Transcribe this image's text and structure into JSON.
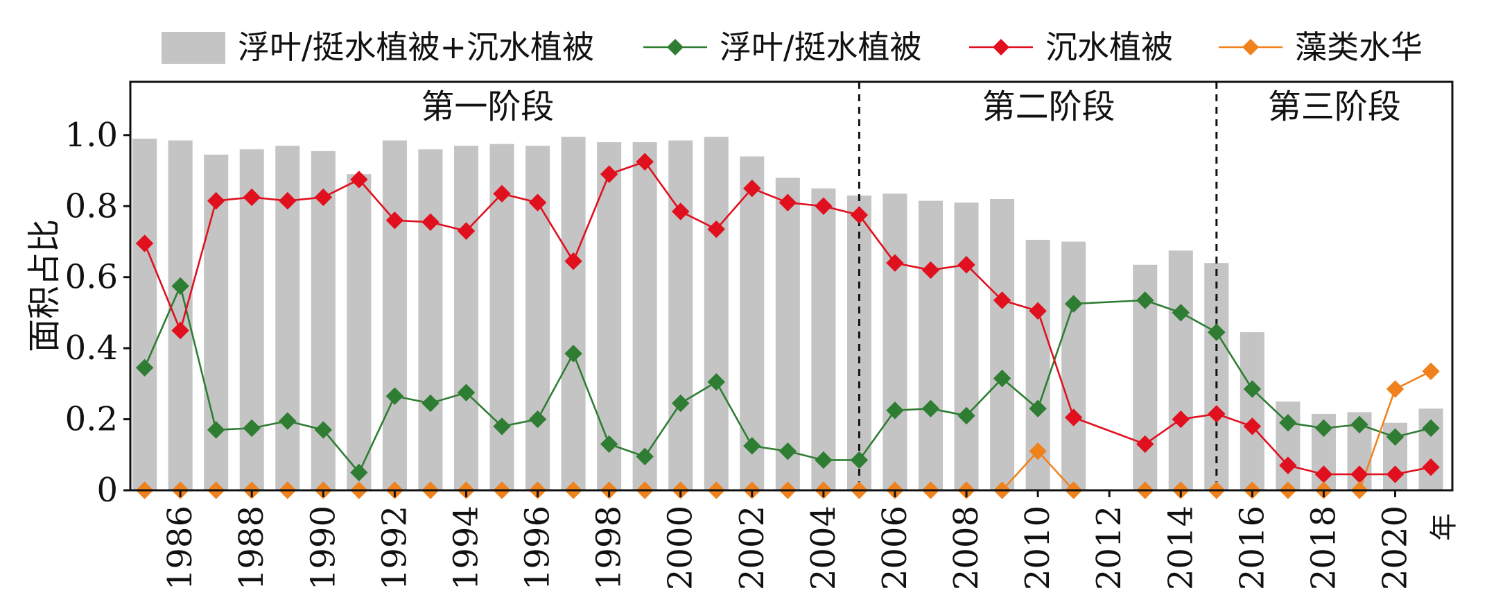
{
  "chart_data": {
    "type": "bar",
    "title": "",
    "xlabel": "",
    "ylabel": "面积占比",
    "x_unit": "年",
    "ylim": [
      0,
      1.15
    ],
    "xlim": [
      1984.6,
      2021.6
    ],
    "yticks": [
      {
        "value": 0,
        "label": "0"
      },
      {
        "value": 0.2,
        "label": "0.2"
      },
      {
        "value": 0.4,
        "label": "0.4"
      },
      {
        "value": 0.6,
        "label": "0.6"
      },
      {
        "value": 0.8,
        "label": "0.8"
      },
      {
        "value": 1.0,
        "label": "1.0"
      }
    ],
    "xticks": [
      {
        "value": 1986,
        "label": "1986"
      },
      {
        "value": 1988,
        "label": "1988"
      },
      {
        "value": 1990,
        "label": "1990"
      },
      {
        "value": 1992,
        "label": "1992"
      },
      {
        "value": 1994,
        "label": "1994"
      },
      {
        "value": 1996,
        "label": "1996"
      },
      {
        "value": 1998,
        "label": "1998"
      },
      {
        "value": 2000,
        "label": "2000"
      },
      {
        "value": 2002,
        "label": "2002"
      },
      {
        "value": 2004,
        "label": "2004"
      },
      {
        "value": 2006,
        "label": "2006"
      },
      {
        "value": 2008,
        "label": "2008"
      },
      {
        "value": 2010,
        "label": "2010"
      },
      {
        "value": 2012,
        "label": "2012"
      },
      {
        "value": 2014,
        "label": "2014"
      },
      {
        "value": 2016,
        "label": "2016"
      },
      {
        "value": 2018,
        "label": "2018"
      },
      {
        "value": 2020,
        "label": "2020"
      }
    ],
    "bar_series": {
      "name": "浮叶/挺水植被+沉水植被",
      "color": "#c4c4c4",
      "points": [
        {
          "x": 1985,
          "y": 0.99
        },
        {
          "x": 1986,
          "y": 0.985
        },
        {
          "x": 1987,
          "y": 0.945
        },
        {
          "x": 1988,
          "y": 0.96
        },
        {
          "x": 1989,
          "y": 0.97
        },
        {
          "x": 1990,
          "y": 0.955
        },
        {
          "x": 1991,
          "y": 0.89
        },
        {
          "x": 1992,
          "y": 0.985
        },
        {
          "x": 1993,
          "y": 0.96
        },
        {
          "x": 1994,
          "y": 0.97
        },
        {
          "x": 1995,
          "y": 0.975
        },
        {
          "x": 1996,
          "y": 0.97
        },
        {
          "x": 1997,
          "y": 0.995
        },
        {
          "x": 1998,
          "y": 0.98
        },
        {
          "x": 1999,
          "y": 0.98
        },
        {
          "x": 2000,
          "y": 0.985
        },
        {
          "x": 2001,
          "y": 0.995
        },
        {
          "x": 2002,
          "y": 0.94
        },
        {
          "x": 2003,
          "y": 0.88
        },
        {
          "x": 2004,
          "y": 0.85
        },
        {
          "x": 2005,
          "y": 0.83
        },
        {
          "x": 2006,
          "y": 0.835
        },
        {
          "x": 2007,
          "y": 0.815
        },
        {
          "x": 2008,
          "y": 0.81
        },
        {
          "x": 2009,
          "y": 0.82
        },
        {
          "x": 2010,
          "y": 0.705
        },
        {
          "x": 2011,
          "y": 0.7
        },
        {
          "x": 2013,
          "y": 0.635
        },
        {
          "x": 2014,
          "y": 0.675
        },
        {
          "x": 2015,
          "y": 0.64
        },
        {
          "x": 2016,
          "y": 0.445
        },
        {
          "x": 2017,
          "y": 0.25
        },
        {
          "x": 2018,
          "y": 0.215
        },
        {
          "x": 2019,
          "y": 0.22
        },
        {
          "x": 2020,
          "y": 0.19
        },
        {
          "x": 2021,
          "y": 0.23
        }
      ]
    },
    "line_series": [
      {
        "name": "浮叶/挺水植被",
        "color": "#2e7d32",
        "marker_color": "#2e7d32",
        "points": [
          {
            "x": 1985,
            "y": 0.345
          },
          {
            "x": 1986,
            "y": 0.575
          },
          {
            "x": 1987,
            "y": 0.17
          },
          {
            "x": 1988,
            "y": 0.175
          },
          {
            "x": 1989,
            "y": 0.195
          },
          {
            "x": 1990,
            "y": 0.17
          },
          {
            "x": 1991,
            "y": 0.05
          },
          {
            "x": 1992,
            "y": 0.265
          },
          {
            "x": 1993,
            "y": 0.245
          },
          {
            "x": 1994,
            "y": 0.275
          },
          {
            "x": 1995,
            "y": 0.18
          },
          {
            "x": 1996,
            "y": 0.2
          },
          {
            "x": 1997,
            "y": 0.385
          },
          {
            "x": 1998,
            "y": 0.13
          },
          {
            "x": 1999,
            "y": 0.095
          },
          {
            "x": 2000,
            "y": 0.245
          },
          {
            "x": 2001,
            "y": 0.305
          },
          {
            "x": 2002,
            "y": 0.125
          },
          {
            "x": 2003,
            "y": 0.11
          },
          {
            "x": 2004,
            "y": 0.085
          },
          {
            "x": 2005,
            "y": 0.085
          },
          {
            "x": 2006,
            "y": 0.225
          },
          {
            "x": 2007,
            "y": 0.23
          },
          {
            "x": 2008,
            "y": 0.21
          },
          {
            "x": 2009,
            "y": 0.315
          },
          {
            "x": 2010,
            "y": 0.23
          },
          {
            "x": 2011,
            "y": 0.525
          },
          {
            "x": 2013,
            "y": 0.535
          },
          {
            "x": 2014,
            "y": 0.5
          },
          {
            "x": 2015,
            "y": 0.445
          },
          {
            "x": 2016,
            "y": 0.285
          },
          {
            "x": 2017,
            "y": 0.19
          },
          {
            "x": 2018,
            "y": 0.175
          },
          {
            "x": 2019,
            "y": 0.185
          },
          {
            "x": 2020,
            "y": 0.15
          },
          {
            "x": 2021,
            "y": 0.175
          }
        ]
      },
      {
        "name": "沉水植被",
        "color": "#e0101e",
        "marker_color": "#e0101e",
        "points": [
          {
            "x": 1985,
            "y": 0.695
          },
          {
            "x": 1986,
            "y": 0.45
          },
          {
            "x": 1987,
            "y": 0.815
          },
          {
            "x": 1988,
            "y": 0.825
          },
          {
            "x": 1989,
            "y": 0.815
          },
          {
            "x": 1990,
            "y": 0.825
          },
          {
            "x": 1991,
            "y": 0.875
          },
          {
            "x": 1992,
            "y": 0.76
          },
          {
            "x": 1993,
            "y": 0.755
          },
          {
            "x": 1994,
            "y": 0.73
          },
          {
            "x": 1995,
            "y": 0.835
          },
          {
            "x": 1996,
            "y": 0.81
          },
          {
            "x": 1997,
            "y": 0.645
          },
          {
            "x": 1998,
            "y": 0.89
          },
          {
            "x": 1999,
            "y": 0.925
          },
          {
            "x": 2000,
            "y": 0.785
          },
          {
            "x": 2001,
            "y": 0.735
          },
          {
            "x": 2002,
            "y": 0.85
          },
          {
            "x": 2003,
            "y": 0.81
          },
          {
            "x": 2004,
            "y": 0.8
          },
          {
            "x": 2005,
            "y": 0.775
          },
          {
            "x": 2006,
            "y": 0.64
          },
          {
            "x": 2007,
            "y": 0.62
          },
          {
            "x": 2008,
            "y": 0.635
          },
          {
            "x": 2009,
            "y": 0.535
          },
          {
            "x": 2010,
            "y": 0.505
          },
          {
            "x": 2011,
            "y": 0.205
          },
          {
            "x": 2013,
            "y": 0.13
          },
          {
            "x": 2014,
            "y": 0.2
          },
          {
            "x": 2015,
            "y": 0.215
          },
          {
            "x": 2016,
            "y": 0.18
          },
          {
            "x": 2017,
            "y": 0.07
          },
          {
            "x": 2018,
            "y": 0.045
          },
          {
            "x": 2019,
            "y": 0.045
          },
          {
            "x": 2020,
            "y": 0.045
          },
          {
            "x": 2021,
            "y": 0.065
          }
        ]
      },
      {
        "name": "藻类水华",
        "color": "#f0821e",
        "marker_color": "#f0821e",
        "points": [
          {
            "x": 1985,
            "y": 0
          },
          {
            "x": 1986,
            "y": 0
          },
          {
            "x": 1987,
            "y": 0
          },
          {
            "x": 1988,
            "y": 0
          },
          {
            "x": 1989,
            "y": 0
          },
          {
            "x": 1990,
            "y": 0
          },
          {
            "x": 1991,
            "y": 0
          },
          {
            "x": 1992,
            "y": 0
          },
          {
            "x": 1993,
            "y": 0
          },
          {
            "x": 1994,
            "y": 0
          },
          {
            "x": 1995,
            "y": 0
          },
          {
            "x": 1996,
            "y": 0
          },
          {
            "x": 1997,
            "y": 0
          },
          {
            "x": 1998,
            "y": 0
          },
          {
            "x": 1999,
            "y": 0
          },
          {
            "x": 2000,
            "y": 0
          },
          {
            "x": 2001,
            "y": 0
          },
          {
            "x": 2002,
            "y": 0
          },
          {
            "x": 2003,
            "y": 0
          },
          {
            "x": 2004,
            "y": 0
          },
          {
            "x": 2005,
            "y": 0
          },
          {
            "x": 2006,
            "y": 0
          },
          {
            "x": 2007,
            "y": 0
          },
          {
            "x": 2008,
            "y": 0
          },
          {
            "x": 2009,
            "y": 0
          },
          {
            "x": 2010,
            "y": 0.11
          },
          {
            "x": 2011,
            "y": 0
          },
          {
            "x": 2013,
            "y": 0
          },
          {
            "x": 2014,
            "y": 0
          },
          {
            "x": 2015,
            "y": 0
          },
          {
            "x": 2016,
            "y": 0
          },
          {
            "x": 2017,
            "y": 0
          },
          {
            "x": 2018,
            "y": 0
          },
          {
            "x": 2019,
            "y": 0
          },
          {
            "x": 2020,
            "y": 0.285
          },
          {
            "x": 2021,
            "y": 0.335
          }
        ]
      }
    ],
    "dividers": [
      2005.0,
      2015.0
    ],
    "stages": [
      {
        "label": "第一阶段",
        "center_x": 1994.6
      },
      {
        "label": "第二阶段",
        "center_x": 2010.3
      },
      {
        "label": "第三阶段",
        "center_x": 2018.3
      }
    ],
    "legend": {
      "position": "top",
      "entries": [
        {
          "label": "浮叶/挺水植被+沉水植被",
          "kind": "bar"
        },
        {
          "label": "浮叶/挺水植被",
          "kind": "line"
        },
        {
          "label": "沉水植被",
          "kind": "line"
        },
        {
          "label": "藻类水华",
          "kind": "line"
        }
      ]
    }
  }
}
